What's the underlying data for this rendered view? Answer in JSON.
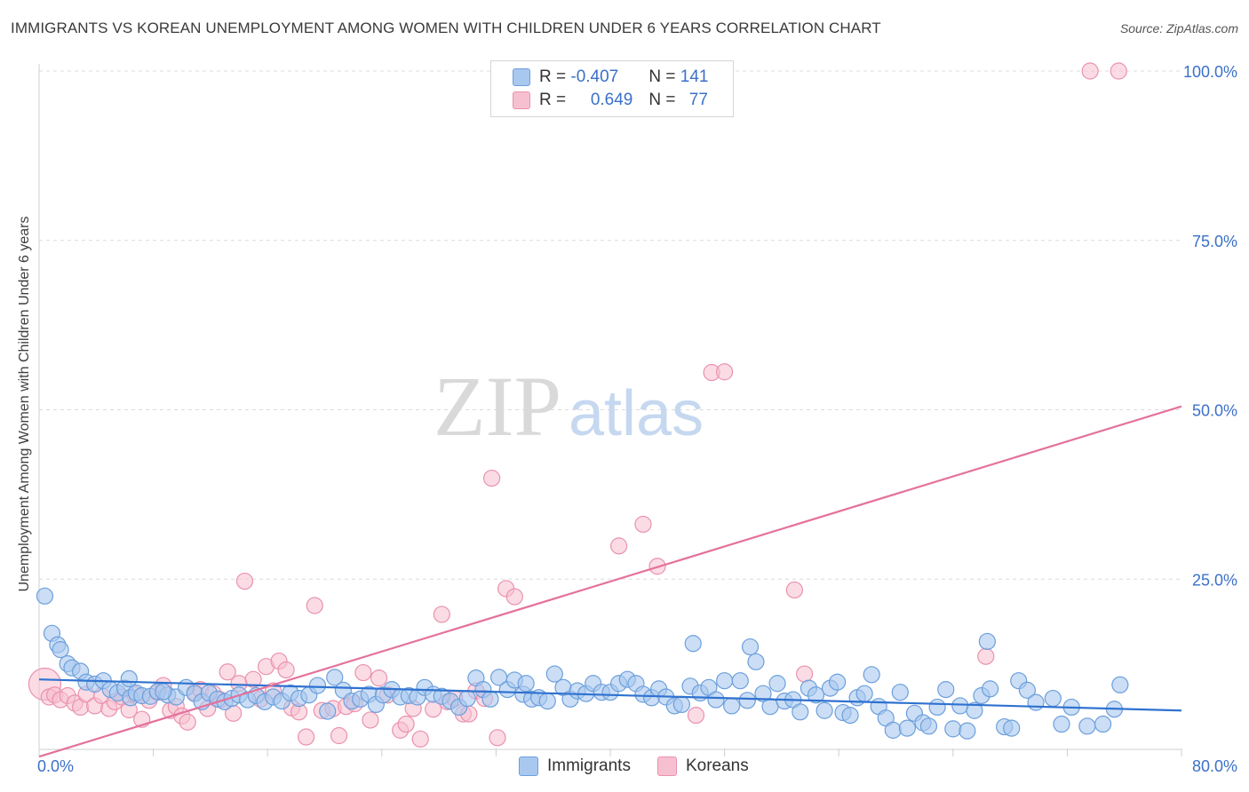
{
  "title": "IMMIGRANTS VS KOREAN UNEMPLOYMENT AMONG WOMEN WITH CHILDREN UNDER 6 YEARS CORRELATION CHART",
  "source": "Source: ZipAtlas.com",
  "watermark": {
    "zip": "ZIP",
    "atlas": "atlas"
  },
  "legend": {
    "rows": [
      {
        "r_label": "R = ",
        "r_value": "-0.407",
        "n_label": "N = ",
        "n_value": "141"
      },
      {
        "r_label": "R = ",
        "r_value": "0.649",
        "n_label": "N = ",
        "n_value": "77"
      }
    ]
  },
  "bottom_legend": [
    "Immigrants",
    "Koreans"
  ],
  "colors": {
    "immigrants_fill": "#a9c8ef",
    "immigrants_stroke": "#6c9fdc",
    "immigrants_line": "#2f72d0",
    "koreans_fill": "#f7c0d0",
    "koreans_stroke": "#ea91ae",
    "koreans_line": "#e4719c",
    "axis_text": "#3b70c8",
    "grid": "#dcdcdc"
  },
  "chart_data": {
    "type": "scatter",
    "title": "IMMIGRANTS VS KOREAN UNEMPLOYMENT AMONG WOMEN WITH CHILDREN UNDER 6 YEARS CORRELATION CHART",
    "xlabel": "",
    "ylabel": "Unemployment Among Women with Children Under 6 years",
    "xlim": [
      0,
      80
    ],
    "ylim": [
      0,
      102
    ],
    "x_tick_labels": [
      "0.0%",
      "80.0%"
    ],
    "y_ticks": [
      25,
      50,
      75,
      100
    ],
    "y_tick_labels": [
      "25.0%",
      "50.0%",
      "75.0%",
      "100.0%"
    ],
    "series": [
      {
        "name": "Immigrants",
        "r": -0.407,
        "n": 141,
        "trend": {
          "x": [
            0,
            80
          ],
          "y": [
            10.2,
            5.6
          ]
        },
        "points": [
          [
            0.4,
            22.5
          ],
          [
            0.9,
            17
          ],
          [
            1.3,
            15.3
          ],
          [
            1.5,
            14.6
          ],
          [
            2.0,
            12.5
          ],
          [
            2.3,
            11.9
          ],
          [
            2.9,
            11.4
          ],
          [
            3.3,
            9.8
          ],
          [
            3.9,
            9.5
          ],
          [
            4.5,
            10.0
          ],
          [
            5.0,
            8.7
          ],
          [
            5.5,
            8.2
          ],
          [
            6.0,
            8.9
          ],
          [
            6.4,
            7.5
          ],
          [
            6.8,
            8.2
          ],
          [
            7.2,
            7.8
          ],
          [
            7.8,
            7.7
          ],
          [
            8.3,
            8.4
          ],
          [
            9.0,
            7.9
          ],
          [
            9.6,
            7.6
          ],
          [
            10.3,
            9.0
          ],
          [
            10.9,
            8.1
          ],
          [
            11.4,
            6.9
          ],
          [
            11.9,
            8.2
          ],
          [
            12.5,
            7.3
          ],
          [
            13.0,
            6.9
          ],
          [
            13.5,
            7.4
          ],
          [
            14.0,
            7.9
          ],
          [
            14.6,
            7.2
          ],
          [
            15.2,
            7.8
          ],
          [
            15.8,
            6.9
          ],
          [
            16.4,
            7.6
          ],
          [
            17.0,
            7.0
          ],
          [
            17.6,
            8.2
          ],
          [
            18.2,
            7.4
          ],
          [
            18.9,
            7.9
          ],
          [
            19.5,
            9.3
          ],
          [
            20.2,
            5.5
          ],
          [
            20.7,
            10.5
          ],
          [
            21.3,
            8.6
          ],
          [
            21.9,
            7.0
          ],
          [
            22.5,
            7.3
          ],
          [
            23.1,
            8.0
          ],
          [
            23.6,
            6.5
          ],
          [
            24.1,
            7.9
          ],
          [
            24.7,
            8.7
          ],
          [
            25.3,
            7.6
          ],
          [
            25.9,
            7.8
          ],
          [
            26.5,
            7.6
          ],
          [
            27.0,
            9.0
          ],
          [
            27.6,
            8.0
          ],
          [
            28.2,
            7.7
          ],
          [
            28.8,
            7.0
          ],
          [
            29.4,
            6.1
          ],
          [
            30.0,
            7.4
          ],
          [
            30.6,
            10.4
          ],
          [
            31.1,
            8.7
          ],
          [
            31.6,
            7.3
          ],
          [
            32.2,
            10.5
          ],
          [
            32.8,
            8.7
          ],
          [
            33.3,
            10.1
          ],
          [
            33.9,
            8.0
          ],
          [
            34.5,
            7.3
          ],
          [
            35.0,
            7.5
          ],
          [
            35.6,
            7.0
          ],
          [
            36.1,
            11.0
          ],
          [
            36.7,
            9.0
          ],
          [
            37.2,
            7.3
          ],
          [
            37.7,
            8.5
          ],
          [
            38.3,
            8.1
          ],
          [
            38.8,
            9.6
          ],
          [
            39.4,
            8.3
          ],
          [
            40.0,
            8.3
          ],
          [
            40.6,
            9.6
          ],
          [
            41.2,
            10.2
          ],
          [
            41.8,
            9.6
          ],
          [
            42.3,
            8.0
          ],
          [
            42.9,
            7.5
          ],
          [
            43.4,
            8.8
          ],
          [
            43.9,
            7.6
          ],
          [
            44.5,
            6.3
          ],
          [
            45.0,
            6.5
          ],
          [
            45.6,
            9.2
          ],
          [
            45.8,
            15.5
          ],
          [
            46.3,
            8.2
          ],
          [
            46.9,
            9.0
          ],
          [
            47.4,
            7.2
          ],
          [
            48.0,
            10.0
          ],
          [
            48.5,
            6.3
          ],
          [
            49.1,
            10.0
          ],
          [
            49.6,
            7.1
          ],
          [
            49.8,
            15.0
          ],
          [
            50.2,
            12.8
          ],
          [
            50.7,
            8.1
          ],
          [
            51.2,
            6.2
          ],
          [
            51.7,
            9.6
          ],
          [
            52.2,
            7.0
          ],
          [
            52.8,
            7.2
          ],
          [
            53.3,
            5.4
          ],
          [
            53.9,
            8.9
          ],
          [
            54.4,
            7.9
          ],
          [
            55.0,
            5.6
          ],
          [
            55.4,
            8.9
          ],
          [
            55.9,
            9.8
          ],
          [
            56.3,
            5.3
          ],
          [
            56.8,
            4.9
          ],
          [
            57.3,
            7.5
          ],
          [
            57.8,
            8.1
          ],
          [
            58.3,
            10.9
          ],
          [
            58.8,
            6.2
          ],
          [
            59.3,
            4.5
          ],
          [
            59.8,
            2.7
          ],
          [
            60.3,
            8.3
          ],
          [
            60.8,
            3.0
          ],
          [
            61.3,
            5.2
          ],
          [
            61.9,
            3.8
          ],
          [
            62.3,
            3.3
          ],
          [
            62.9,
            6.1
          ],
          [
            63.5,
            8.7
          ],
          [
            64.0,
            2.9
          ],
          [
            64.5,
            6.3
          ],
          [
            65.0,
            2.6
          ],
          [
            65.5,
            5.6
          ],
          [
            66.0,
            7.8
          ],
          [
            66.4,
            15.8
          ],
          [
            66.6,
            8.8
          ],
          [
            67.6,
            3.2
          ],
          [
            68.1,
            3.0
          ],
          [
            68.6,
            10.0
          ],
          [
            69.2,
            8.6
          ],
          [
            69.8,
            6.8
          ],
          [
            71.0,
            7.4
          ],
          [
            71.6,
            3.6
          ],
          [
            72.3,
            6.1
          ],
          [
            73.4,
            3.3
          ],
          [
            74.5,
            3.6
          ],
          [
            75.3,
            5.8
          ],
          [
            75.7,
            9.4
          ],
          [
            6.3,
            10.3
          ],
          [
            8.7,
            8.4
          ],
          [
            34.1,
            9.6
          ]
        ]
      },
      {
        "name": "Koreans",
        "r": 0.649,
        "n": 77,
        "trend": {
          "x": [
            0,
            80
          ],
          "y": [
            -1.2,
            50.5
          ]
        },
        "points": [
          [
            0.4,
            9.5
          ],
          [
            0.7,
            7.6
          ],
          [
            1.1,
            7.9
          ],
          [
            1.5,
            7.2
          ],
          [
            2.0,
            7.8
          ],
          [
            2.5,
            6.7
          ],
          [
            2.9,
            6.1
          ],
          [
            3.3,
            8.0
          ],
          [
            3.9,
            6.3
          ],
          [
            4.4,
            7.8
          ],
          [
            4.9,
            5.9
          ],
          [
            5.3,
            6.9
          ],
          [
            5.8,
            7.6
          ],
          [
            6.3,
            5.7
          ],
          [
            6.7,
            8.0
          ],
          [
            7.2,
            4.3
          ],
          [
            7.7,
            7.1
          ],
          [
            8.3,
            8.3
          ],
          [
            8.7,
            9.3
          ],
          [
            9.2,
            5.6
          ],
          [
            9.6,
            6.2
          ],
          [
            10.0,
            4.8
          ],
          [
            10.4,
            3.9
          ],
          [
            10.9,
            8.3
          ],
          [
            11.3,
            8.7
          ],
          [
            11.8,
            5.9
          ],
          [
            12.2,
            8.1
          ],
          [
            12.7,
            7.2
          ],
          [
            13.2,
            11.3
          ],
          [
            13.6,
            5.2
          ],
          [
            14.0,
            9.6
          ],
          [
            14.4,
            24.7
          ],
          [
            15.0,
            10.2
          ],
          [
            15.5,
            7.3
          ],
          [
            15.9,
            12.1
          ],
          [
            16.4,
            8.5
          ],
          [
            16.8,
            12.9
          ],
          [
            17.3,
            11.6
          ],
          [
            17.7,
            6.0
          ],
          [
            18.2,
            5.4
          ],
          [
            18.7,
            1.7
          ],
          [
            19.3,
            21.1
          ],
          [
            19.8,
            5.6
          ],
          [
            20.6,
            5.9
          ],
          [
            21.0,
            1.9
          ],
          [
            21.5,
            6.2
          ],
          [
            22.1,
            6.6
          ],
          [
            22.7,
            11.2
          ],
          [
            23.2,
            4.2
          ],
          [
            23.8,
            10.4
          ],
          [
            24.4,
            7.9
          ],
          [
            25.3,
            2.7
          ],
          [
            25.7,
            3.6
          ],
          [
            26.2,
            5.9
          ],
          [
            26.7,
            1.4
          ],
          [
            27.6,
            5.8
          ],
          [
            28.2,
            19.8
          ],
          [
            28.6,
            6.9
          ],
          [
            29.1,
            7.4
          ],
          [
            29.7,
            5.1
          ],
          [
            30.1,
            5.1
          ],
          [
            30.6,
            8.5
          ],
          [
            31.2,
            7.4
          ],
          [
            31.7,
            39.9
          ],
          [
            32.1,
            1.6
          ],
          [
            32.7,
            23.6
          ],
          [
            33.3,
            22.4
          ],
          [
            40.6,
            29.9
          ],
          [
            42.3,
            33.1
          ],
          [
            43.3,
            26.9
          ],
          [
            46.0,
            4.9
          ],
          [
            47.1,
            55.5
          ],
          [
            48.0,
            55.6
          ],
          [
            52.9,
            23.4
          ],
          [
            53.6,
            11.0
          ],
          [
            66.3,
            13.6
          ],
          [
            73.6,
            100
          ],
          [
            75.6,
            100
          ]
        ]
      }
    ]
  }
}
